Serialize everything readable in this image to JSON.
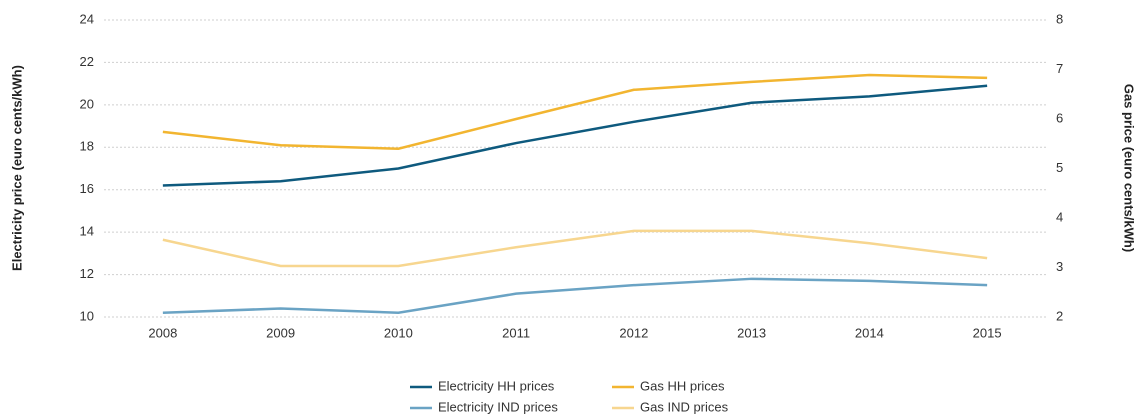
{
  "chart_data": {
    "type": "line",
    "y_label": "Electricity price (euro cents/kWh)",
    "y2_label": "Gas price (euro cents/kWh)",
    "categories": [
      "2008",
      "2009",
      "2010",
      "2011",
      "2012",
      "2013",
      "2014",
      "2015"
    ],
    "series": [
      {
        "name": "Electricity HH prices",
        "color": "#0e5a7e",
        "values": [
          16.2,
          16.4,
          17.0,
          18.2,
          19.2,
          20.1,
          20.4,
          20.9
        ]
      },
      {
        "name": "Electricity IND prices",
        "color": "#6aa3c4",
        "values": [
          10.2,
          10.4,
          10.2,
          11.1,
          11.5,
          11.8,
          11.7,
          11.5
        ]
      },
      {
        "name": "Gas HH prices",
        "color": "#f2b530",
        "axis": "y2",
        "values": [
          5.74,
          5.47,
          5.4,
          6.0,
          6.59,
          6.75,
          6.89,
          6.83
        ]
      },
      {
        "name": "Gas IND prices",
        "color": "#f7d68f",
        "axis": "y2",
        "values": [
          3.56,
          3.03,
          3.03,
          3.41,
          3.74,
          3.74,
          3.49,
          3.19
        ]
      }
    ],
    "ylim": [
      10,
      24
    ],
    "yticks": [
      10,
      12,
      14,
      16,
      18,
      20,
      22,
      24
    ],
    "y2lim": [
      2,
      8
    ],
    "y2ticks": [
      2,
      3,
      4,
      5,
      6,
      7,
      8
    ],
    "grid": true
  }
}
